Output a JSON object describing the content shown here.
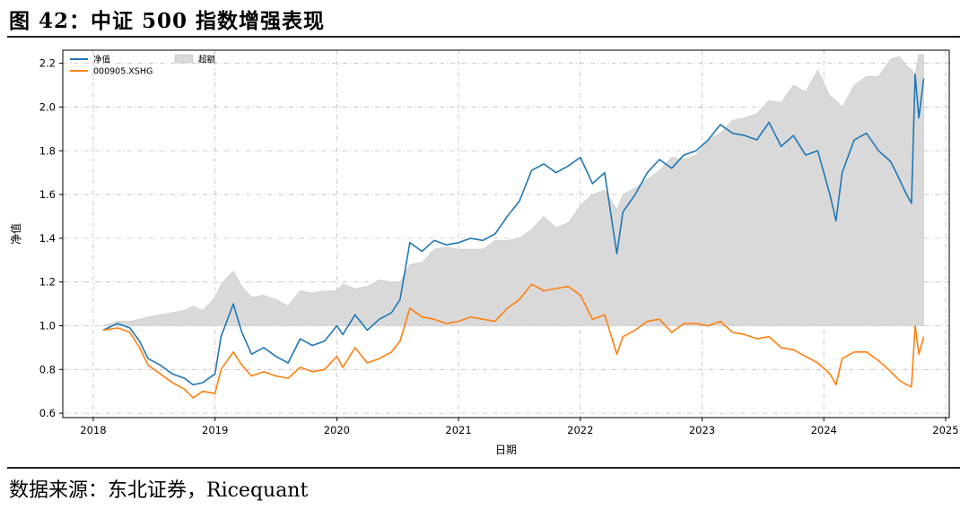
{
  "figure": {
    "title": "图 42：中证 500 指数增强表现",
    "source": "数据来源：东北证券，Ricequant"
  },
  "chart_data": {
    "type": "line",
    "xlabel": "日期",
    "ylabel": "净值",
    "xlim": [
      2017.75,
      2025.03
    ],
    "ylim": [
      0.58,
      2.26
    ],
    "x_ticks": [
      "2018",
      "2019",
      "2020",
      "2021",
      "2022",
      "2023",
      "2024",
      "2025"
    ],
    "y_ticks": [
      "0.6",
      "0.8",
      "1.0",
      "1.2",
      "1.4",
      "1.6",
      "1.8",
      "2.0",
      "2.2"
    ],
    "grid": true,
    "legend_position": "top-left",
    "baseline": 1.0,
    "series": [
      {
        "name": "净值",
        "kind": "line",
        "color": "#1f77b4",
        "x": [
          2018.08,
          2018.2,
          2018.3,
          2018.38,
          2018.45,
          2018.55,
          2018.65,
          2018.75,
          2018.82,
          2018.9,
          2019.0,
          2019.05,
          2019.15,
          2019.22,
          2019.3,
          2019.4,
          2019.5,
          2019.6,
          2019.7,
          2019.8,
          2019.9,
          2020.0,
          2020.05,
          2020.15,
          2020.25,
          2020.35,
          2020.45,
          2020.52,
          2020.6,
          2020.7,
          2020.8,
          2020.9,
          2021.0,
          2021.1,
          2021.2,
          2021.3,
          2021.4,
          2021.5,
          2021.6,
          2021.7,
          2021.8,
          2021.9,
          2022.0,
          2022.1,
          2022.2,
          2022.3,
          2022.35,
          2022.45,
          2022.55,
          2022.65,
          2022.75,
          2022.85,
          2022.95,
          2023.05,
          2023.15,
          2023.25,
          2023.35,
          2023.45,
          2023.55,
          2023.65,
          2023.75,
          2023.85,
          2023.95,
          2024.05,
          2024.1,
          2024.15,
          2024.25,
          2024.35,
          2024.45,
          2024.55,
          2024.62,
          2024.68,
          2024.72,
          2024.75,
          2024.78,
          2024.82
        ],
        "y": [
          0.98,
          1.01,
          0.99,
          0.93,
          0.85,
          0.82,
          0.78,
          0.76,
          0.73,
          0.74,
          0.78,
          0.95,
          1.1,
          0.97,
          0.87,
          0.9,
          0.86,
          0.83,
          0.94,
          0.91,
          0.93,
          1.0,
          0.96,
          1.05,
          0.98,
          1.03,
          1.06,
          1.12,
          1.38,
          1.34,
          1.39,
          1.37,
          1.38,
          1.4,
          1.39,
          1.42,
          1.5,
          1.57,
          1.71,
          1.74,
          1.7,
          1.73,
          1.77,
          1.65,
          1.7,
          1.33,
          1.52,
          1.6,
          1.7,
          1.76,
          1.72,
          1.78,
          1.8,
          1.85,
          1.92,
          1.88,
          1.87,
          1.85,
          1.93,
          1.82,
          1.87,
          1.78,
          1.8,
          1.6,
          1.48,
          1.7,
          1.85,
          1.88,
          1.8,
          1.75,
          1.67,
          1.6,
          1.56,
          2.15,
          1.95,
          2.13
        ]
      },
      {
        "name": "000905.XSHG",
        "kind": "line",
        "color": "#ff7f0e",
        "x": [
          2018.08,
          2018.2,
          2018.3,
          2018.38,
          2018.45,
          2018.55,
          2018.65,
          2018.75,
          2018.82,
          2018.9,
          2019.0,
          2019.05,
          2019.15,
          2019.22,
          2019.3,
          2019.4,
          2019.5,
          2019.6,
          2019.7,
          2019.8,
          2019.9,
          2020.0,
          2020.05,
          2020.15,
          2020.25,
          2020.35,
          2020.45,
          2020.52,
          2020.6,
          2020.7,
          2020.8,
          2020.9,
          2021.0,
          2021.1,
          2021.2,
          2021.3,
          2021.4,
          2021.5,
          2021.6,
          2021.7,
          2021.8,
          2021.9,
          2022.0,
          2022.1,
          2022.2,
          2022.3,
          2022.35,
          2022.45,
          2022.55,
          2022.65,
          2022.75,
          2022.85,
          2022.95,
          2023.05,
          2023.15,
          2023.25,
          2023.35,
          2023.45,
          2023.55,
          2023.65,
          2023.75,
          2023.85,
          2023.95,
          2024.05,
          2024.1,
          2024.15,
          2024.25,
          2024.35,
          2024.45,
          2024.55,
          2024.62,
          2024.68,
          2024.72,
          2024.75,
          2024.78,
          2024.82
        ],
        "y": [
          0.98,
          0.99,
          0.97,
          0.9,
          0.82,
          0.78,
          0.74,
          0.71,
          0.67,
          0.7,
          0.69,
          0.8,
          0.88,
          0.82,
          0.77,
          0.79,
          0.77,
          0.76,
          0.81,
          0.79,
          0.8,
          0.86,
          0.81,
          0.9,
          0.83,
          0.85,
          0.88,
          0.93,
          1.08,
          1.04,
          1.03,
          1.01,
          1.02,
          1.04,
          1.03,
          1.02,
          1.08,
          1.12,
          1.19,
          1.16,
          1.17,
          1.18,
          1.14,
          1.03,
          1.05,
          0.87,
          0.95,
          0.98,
          1.02,
          1.03,
          0.97,
          1.01,
          1.01,
          1.0,
          1.02,
          0.97,
          0.96,
          0.94,
          0.95,
          0.9,
          0.89,
          0.86,
          0.83,
          0.78,
          0.73,
          0.85,
          0.88,
          0.88,
          0.84,
          0.79,
          0.75,
          0.73,
          0.72,
          1.0,
          0.87,
          0.95
        ]
      },
      {
        "name": "超额",
        "kind": "area",
        "color": "#d9d9d9",
        "x": [
          2018.08,
          2018.2,
          2018.3,
          2018.38,
          2018.45,
          2018.55,
          2018.65,
          2018.75,
          2018.82,
          2018.9,
          2019.0,
          2019.05,
          2019.15,
          2019.22,
          2019.3,
          2019.4,
          2019.5,
          2019.6,
          2019.7,
          2019.8,
          2019.9,
          2020.0,
          2020.05,
          2020.15,
          2020.25,
          2020.35,
          2020.45,
          2020.52,
          2020.6,
          2020.7,
          2020.8,
          2020.9,
          2021.0,
          2021.1,
          2021.2,
          2021.3,
          2021.4,
          2021.5,
          2021.6,
          2021.7,
          2021.8,
          2021.9,
          2022.0,
          2022.1,
          2022.2,
          2022.3,
          2022.35,
          2022.45,
          2022.55,
          2022.65,
          2022.75,
          2022.85,
          2022.95,
          2023.05,
          2023.15,
          2023.25,
          2023.35,
          2023.45,
          2023.55,
          2023.65,
          2023.75,
          2023.85,
          2023.95,
          2024.05,
          2024.1,
          2024.15,
          2024.25,
          2024.35,
          2024.45,
          2024.55,
          2024.62,
          2024.68,
          2024.72,
          2024.75,
          2024.78,
          2024.82
        ],
        "y": [
          1.0,
          1.02,
          1.02,
          1.03,
          1.04,
          1.05,
          1.06,
          1.07,
          1.09,
          1.07,
          1.13,
          1.19,
          1.25,
          1.18,
          1.13,
          1.14,
          1.12,
          1.09,
          1.16,
          1.15,
          1.16,
          1.16,
          1.19,
          1.17,
          1.18,
          1.21,
          1.2,
          1.2,
          1.28,
          1.29,
          1.35,
          1.36,
          1.35,
          1.35,
          1.35,
          1.39,
          1.39,
          1.4,
          1.44,
          1.5,
          1.45,
          1.47,
          1.55,
          1.6,
          1.62,
          1.53,
          1.6,
          1.63,
          1.67,
          1.71,
          1.77,
          1.76,
          1.78,
          1.85,
          1.88,
          1.94,
          1.95,
          1.97,
          2.03,
          2.02,
          2.1,
          2.07,
          2.17,
          2.05,
          2.03,
          2.0,
          2.1,
          2.14,
          2.14,
          2.22,
          2.23,
          2.19,
          2.17,
          2.15,
          2.24,
          2.24
        ]
      }
    ]
  }
}
